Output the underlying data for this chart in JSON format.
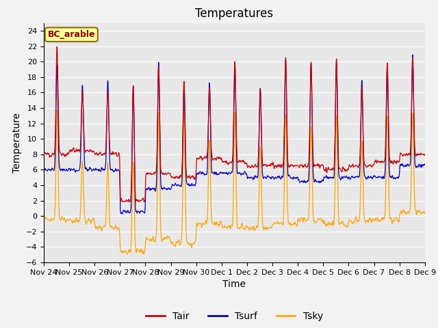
{
  "title": "Temperatures",
  "xlabel": "Time",
  "ylabel": "Temperature",
  "ylim": [
    -6,
    25
  ],
  "yticks": [
    -6,
    -4,
    -2,
    0,
    2,
    4,
    6,
    8,
    10,
    12,
    14,
    16,
    18,
    20,
    22,
    24
  ],
  "legend_label": "BC_arable",
  "legend_box_color": "#FFFF99",
  "legend_box_edge": "#8B6914",
  "line_colors": {
    "Tair": "#CC0000",
    "Tsurf": "#0000CC",
    "Tsky": "#FFA500"
  },
  "xtick_labels": [
    "Nov 24",
    "Nov 25",
    "Nov 26",
    "Nov 27",
    "Nov 28",
    "Nov 29",
    "Nov 30",
    "Dec 1",
    "Dec 2",
    "Dec 3",
    "Dec 4",
    "Dec 5",
    "Dec 6",
    "Dec 7",
    "Dec 8",
    "Dec 9"
  ],
  "background_color": "#E8E8E8",
  "grid_color": "#FFFFFF",
  "title_fontsize": 12,
  "axis_fontsize": 10,
  "tick_fontsize": 8,
  "legend_fontsize": 10
}
